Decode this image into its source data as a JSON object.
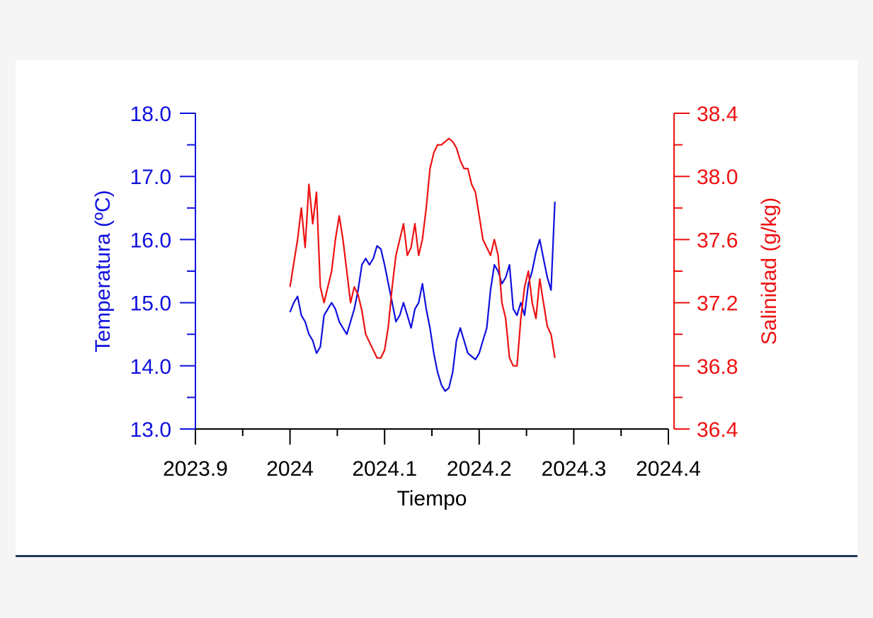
{
  "colors": {
    "temperature": "#1010dd",
    "salinity": "#ee1111",
    "axis_bottom": "#000000",
    "page_background": "#f5f5f5",
    "panel_background": "#ffffff",
    "panel_rule": "#1d3a58"
  },
  "chart_data": {
    "type": "line",
    "title": "",
    "xlabel": "Tiempo",
    "ylabel_left": "Temperatura (ºC)",
    "ylabel_right": "Salinidad (g/kg)",
    "xlim": [
      2023.9,
      2024.4
    ],
    "ylim_left": [
      13.0,
      18.0
    ],
    "ylim_right": [
      36.4,
      38.4
    ],
    "x_tick_labels": [
      "2023.9",
      "2024",
      "2024.1",
      "2024.2",
      "2024.3",
      "2024.4"
    ],
    "x_ticks": [
      2023.9,
      2024.0,
      2024.1,
      2024.2,
      2024.3,
      2024.4
    ],
    "y_left_tick_labels": [
      "13.0",
      "14.0",
      "15.0",
      "16.0",
      "17.0",
      "18.0"
    ],
    "y_left_ticks": [
      13.0,
      14.0,
      15.0,
      16.0,
      17.0,
      18.0
    ],
    "y_right_tick_labels": [
      "36.4",
      "36.8",
      "37.2",
      "37.6",
      "38.0",
      "38.4"
    ],
    "y_right_ticks": [
      36.4,
      36.8,
      37.2,
      37.6,
      38.0,
      38.4
    ],
    "grid": false,
    "legend": "none",
    "series": [
      {
        "axis": "left",
        "color": "#1010dd",
        "x": [
          2024.0,
          2024.004,
          2024.008,
          2024.012,
          2024.016,
          2024.02,
          2024.024,
          2024.028,
          2024.032,
          2024.036,
          2024.04,
          2024.044,
          2024.048,
          2024.052,
          2024.056,
          2024.06,
          2024.064,
          2024.068,
          2024.072,
          2024.076,
          2024.08,
          2024.084,
          2024.088,
          2024.092,
          2024.096,
          2024.1,
          2024.104,
          2024.108,
          2024.112,
          2024.116,
          2024.12,
          2024.124,
          2024.128,
          2024.132,
          2024.136,
          2024.14,
          2024.144,
          2024.148,
          2024.152,
          2024.156,
          2024.16,
          2024.164,
          2024.168,
          2024.172,
          2024.176,
          2024.18,
          2024.184,
          2024.188,
          2024.192,
          2024.196,
          2024.2,
          2024.204,
          2024.208,
          2024.212,
          2024.216,
          2024.22,
          2024.224,
          2024.228,
          2024.232,
          2024.236,
          2024.24,
          2024.244,
          2024.248,
          2024.252,
          2024.256,
          2024.26,
          2024.264,
          2024.268,
          2024.272,
          2024.276,
          2024.28
        ],
        "y": [
          14.85,
          15.0,
          15.1,
          14.8,
          14.7,
          14.5,
          14.4,
          14.2,
          14.3,
          14.8,
          14.9,
          15.0,
          14.9,
          14.7,
          14.6,
          14.5,
          14.7,
          14.9,
          15.2,
          15.6,
          15.7,
          15.6,
          15.7,
          15.9,
          15.85,
          15.6,
          15.3,
          15.0,
          14.7,
          14.8,
          15.0,
          14.8,
          14.6,
          14.9,
          15.0,
          15.3,
          14.9,
          14.6,
          14.2,
          13.9,
          13.7,
          13.6,
          13.65,
          13.9,
          14.4,
          14.6,
          14.4,
          14.2,
          14.15,
          14.1,
          14.2,
          14.4,
          14.6,
          15.2,
          15.6,
          15.5,
          15.3,
          15.4,
          15.6,
          14.9,
          14.8,
          15.0,
          14.8,
          15.3,
          15.5,
          15.8,
          16.0,
          15.7,
          15.4,
          15.2,
          16.6
        ]
      },
      {
        "axis": "right",
        "color": "#ee1111",
        "x": [
          2024.0,
          2024.004,
          2024.008,
          2024.012,
          2024.016,
          2024.02,
          2024.024,
          2024.028,
          2024.032,
          2024.036,
          2024.04,
          2024.044,
          2024.048,
          2024.052,
          2024.056,
          2024.06,
          2024.064,
          2024.068,
          2024.072,
          2024.076,
          2024.08,
          2024.084,
          2024.088,
          2024.092,
          2024.096,
          2024.1,
          2024.104,
          2024.108,
          2024.112,
          2024.116,
          2024.12,
          2024.124,
          2024.128,
          2024.132,
          2024.136,
          2024.14,
          2024.144,
          2024.148,
          2024.152,
          2024.156,
          2024.16,
          2024.164,
          2024.168,
          2024.172,
          2024.176,
          2024.18,
          2024.184,
          2024.188,
          2024.192,
          2024.196,
          2024.2,
          2024.204,
          2024.208,
          2024.212,
          2024.216,
          2024.22,
          2024.224,
          2024.228,
          2024.232,
          2024.236,
          2024.24,
          2024.244,
          2024.248,
          2024.252,
          2024.256,
          2024.26,
          2024.264,
          2024.268,
          2024.272,
          2024.276,
          2024.28
        ],
        "y": [
          37.3,
          37.45,
          37.6,
          37.8,
          37.55,
          37.95,
          37.7,
          37.9,
          37.3,
          37.2,
          37.3,
          37.4,
          37.6,
          37.75,
          37.6,
          37.4,
          37.2,
          37.3,
          37.25,
          37.15,
          37.0,
          36.95,
          36.9,
          36.85,
          36.85,
          36.9,
          37.05,
          37.3,
          37.5,
          37.6,
          37.7,
          37.5,
          37.55,
          37.7,
          37.5,
          37.6,
          37.8,
          38.05,
          38.15,
          38.2,
          38.2,
          38.22,
          38.24,
          38.22,
          38.18,
          38.1,
          38.05,
          38.05,
          37.95,
          37.9,
          37.75,
          37.6,
          37.55,
          37.5,
          37.6,
          37.5,
          37.2,
          37.1,
          36.85,
          36.8,
          36.8,
          37.1,
          37.3,
          37.4,
          37.2,
          37.1,
          37.35,
          37.2,
          37.05,
          37.0,
          36.85
        ]
      }
    ]
  }
}
